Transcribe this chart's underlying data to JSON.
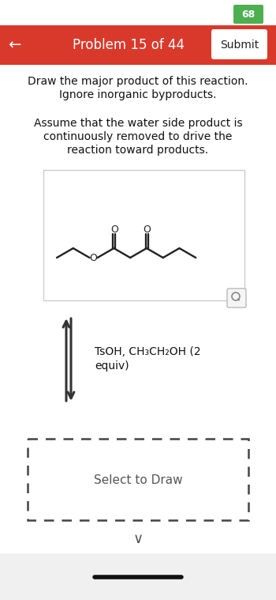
{
  "bg_color": "#ffffff",
  "header_color": "#d9392b",
  "header_text": "Problem 15 of 44",
  "header_text_color": "#ffffff",
  "submit_btn_text": "Submit",
  "back_arrow": "←",
  "badge_text": "68",
  "badge_bg": "#4caf50",
  "badge_text_color": "#ffffff",
  "title_line1": "Draw the major product of this reaction.",
  "title_line2": "Ignore inorganic byproducts.",
  "body_line1": "Assume that the water side product is",
  "body_line2": "continuously removed to drive the",
  "body_line3": "reaction toward products.",
  "reagent_line1": "TsOH, CH₃CH₂OH (2",
  "reagent_line2": "equiv)",
  "select_text": "Select to Draw",
  "footer_line_color": "#111111",
  "text_color": "#111111",
  "mol_box_edge": "#cccccc",
  "arrow_color": "#333333",
  "dash_edge": "#444444"
}
